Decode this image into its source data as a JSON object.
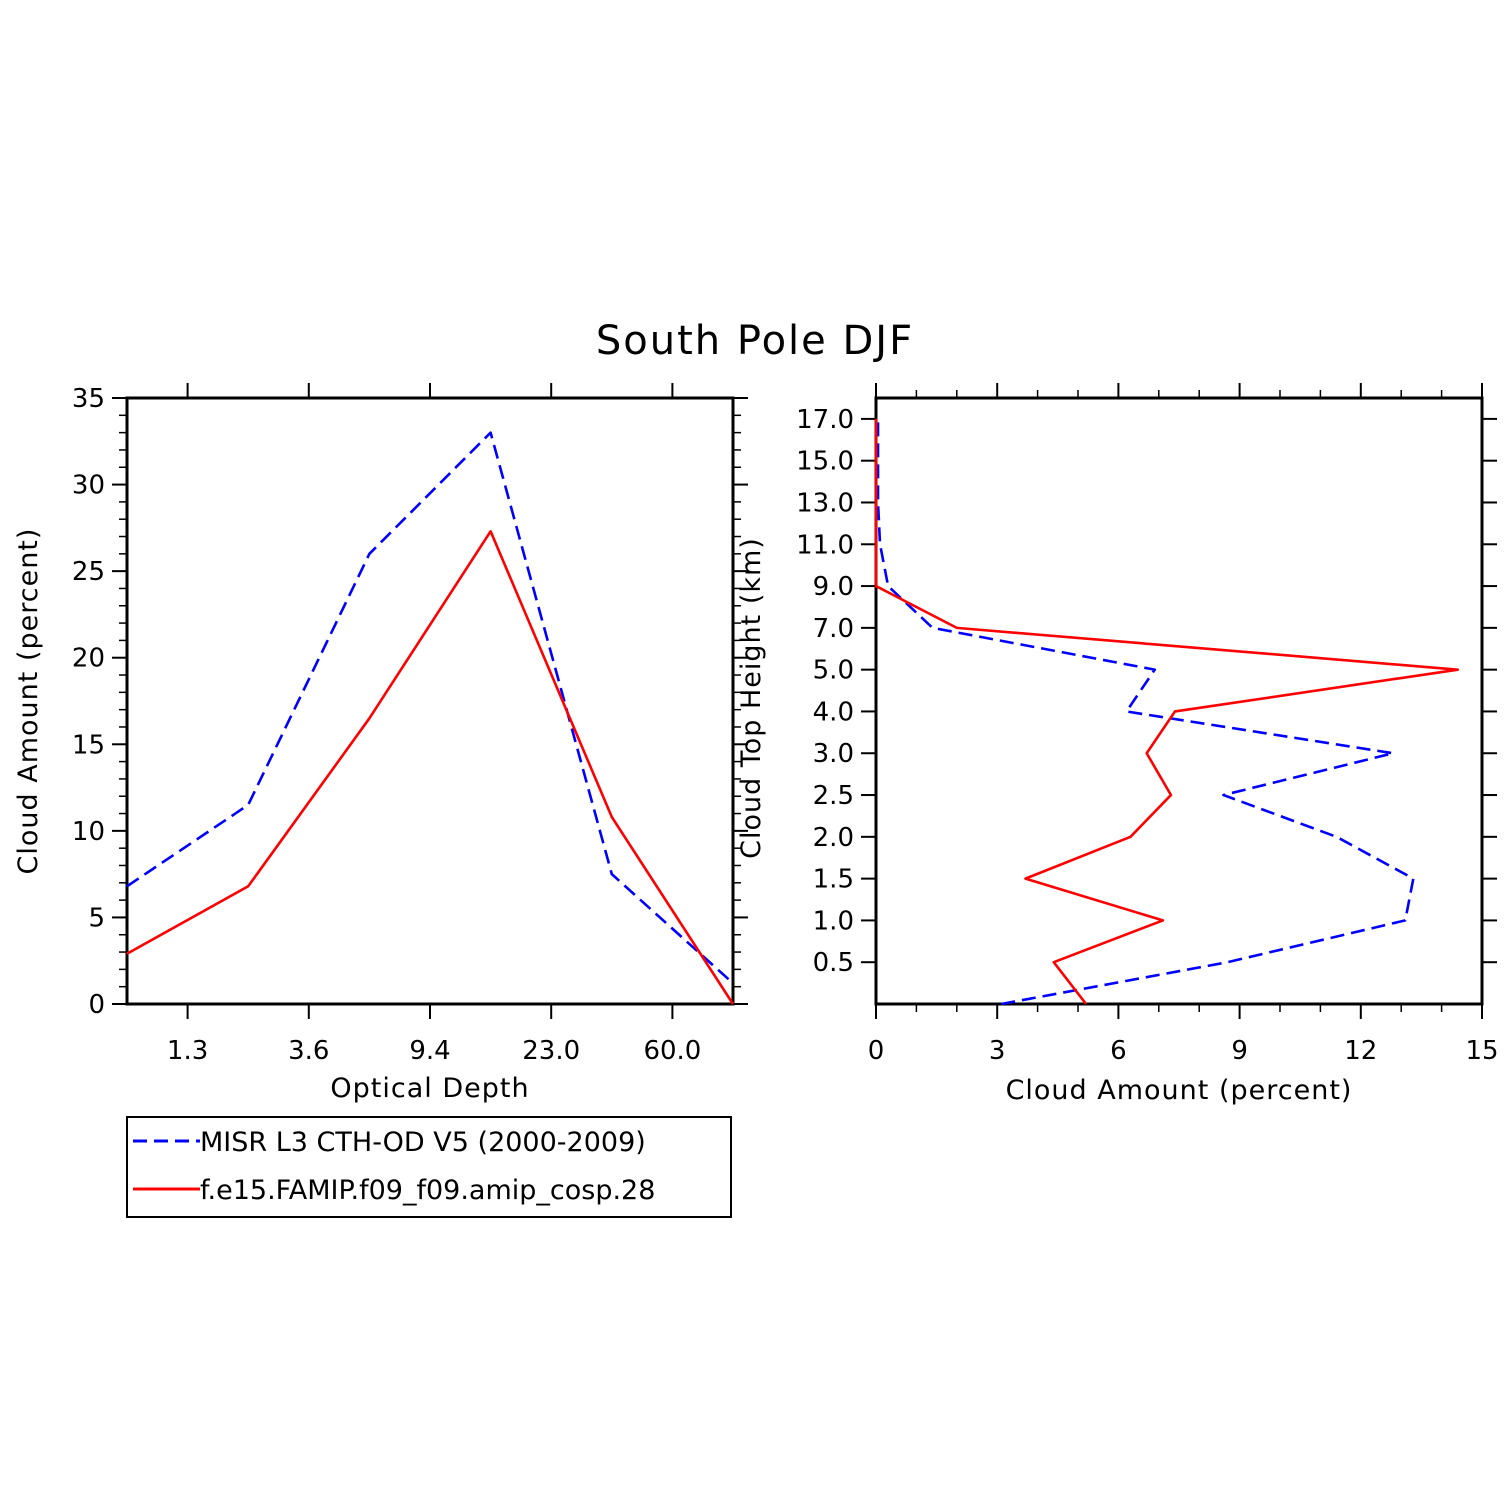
{
  "title": "South Pole DJF",
  "colors": {
    "obs": "#0000ff",
    "model": "#ff0000",
    "axis": "#000000"
  },
  "chart_data": [
    {
      "type": "line",
      "xlabel": "Optical Depth",
      "ylabel": "Cloud Amount (percent)",
      "ylim": [
        0,
        35
      ],
      "yticks": [
        "0",
        "5",
        "10",
        "15",
        "20",
        "25",
        "30",
        "35"
      ],
      "xtick_labels": [
        "1.3",
        "3.6",
        "9.4",
        "23.0",
        "60.0"
      ],
      "x": [
        0,
        1,
        2,
        3,
        4,
        5
      ],
      "series": [
        {
          "name": "MISR L3 CTH-OD V5 (2000-2009)",
          "style": "dashed",
          "values": [
            6.8,
            11.5,
            26.0,
            33.0,
            7.5,
            1.2
          ]
        },
        {
          "name": "f.e15.FAMIP.f09_f09.amip_cosp.28",
          "style": "solid",
          "values": [
            2.9,
            6.8,
            16.5,
            27.3,
            10.8,
            0.0
          ]
        }
      ]
    },
    {
      "type": "line",
      "xlabel": "Cloud Amount (percent)",
      "ylabel": "Cloud Top Height (km)",
      "xlim": [
        0,
        15
      ],
      "xticks": [
        "0",
        "3",
        "6",
        "9",
        "12",
        "15"
      ],
      "ytick_labels": [
        "0.5",
        "1.0",
        "1.5",
        "2.0",
        "2.5",
        "3.0",
        "4.0",
        "5.0",
        "7.0",
        "9.0",
        "11.0",
        "13.0",
        "15.0",
        "17.0"
      ],
      "levels": [
        0.25,
        0.5,
        1.0,
        1.5,
        2.0,
        2.5,
        3.0,
        4.0,
        5.0,
        7.0,
        9.0,
        11.0,
        13.0,
        15.0,
        17.0
      ],
      "series": [
        {
          "name": "MISR L3 CTH-OD V5 (2000-2009)",
          "style": "dashed",
          "values": [
            3.1,
            8.7,
            13.1,
            13.3,
            11.4,
            8.6,
            12.8,
            6.2,
            6.9,
            1.4,
            0.3,
            0.1,
            0.05,
            0.05,
            0.05
          ]
        },
        {
          "name": "f.e15.FAMIP.f09_f09.amip_cosp.28",
          "style": "solid",
          "values": [
            5.2,
            4.4,
            7.1,
            3.7,
            6.3,
            7.3,
            6.7,
            7.4,
            14.4,
            2.0,
            0.0,
            0.0,
            0.0,
            0.0,
            0.0
          ]
        }
      ]
    }
  ],
  "legend": [
    {
      "label": "MISR L3 CTH-OD V5 (2000-2009)",
      "style": "dashed"
    },
    {
      "label": "f.e15.FAMIP.f09_f09.amip_cosp.28",
      "style": "solid"
    }
  ]
}
